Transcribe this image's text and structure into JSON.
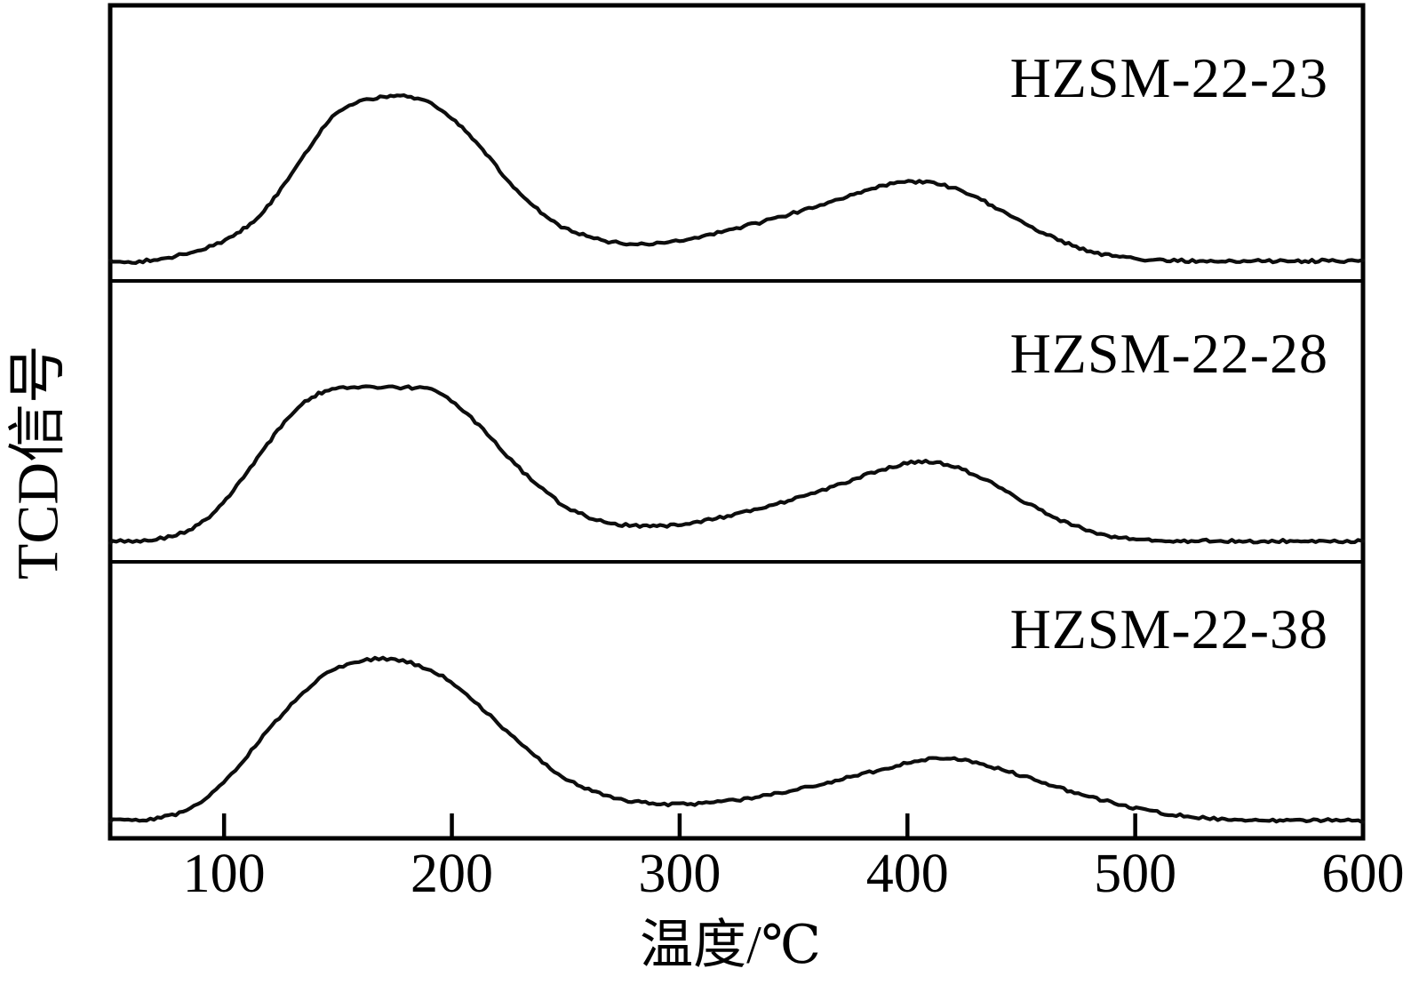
{
  "chart_data": {
    "type": "line",
    "title": "",
    "xlabel": "温度/℃",
    "ylabel": "TCD信号",
    "x_ticks": [
      100,
      200,
      300,
      400,
      500,
      600
    ],
    "xlim": [
      50,
      600
    ],
    "ylim_note": "y is unlabeled arbitrary TCD signal; values below are normalized 0-1 per panel (1 = top of main low-temperature peak)",
    "grid": false,
    "legend_position": "none (each of three stacked panels is labeled inside at top right)",
    "layout": "three vertically stacked panels sharing one temperature axis; black curves on white, serif labels",
    "line_color": "#000000",
    "series": [
      {
        "name": "HZSM-22-23",
        "panel": 0,
        "peak_summary": "broad desorption peak plateau ~150-190°C and weaker broad peak ~400°C",
        "points": [
          [
            50,
            0.015
          ],
          [
            58,
            0.01
          ],
          [
            66,
            0.02
          ],
          [
            74,
            0.035
          ],
          [
            82,
            0.06
          ],
          [
            90,
            0.09
          ],
          [
            97,
            0.12
          ],
          [
            104,
            0.17
          ],
          [
            110,
            0.23
          ],
          [
            116,
            0.3
          ],
          [
            122,
            0.4
          ],
          [
            128,
            0.52
          ],
          [
            134,
            0.64
          ],
          [
            140,
            0.76
          ],
          [
            146,
            0.87
          ],
          [
            152,
            0.945
          ],
          [
            158,
            0.985
          ],
          [
            164,
            1.005
          ],
          [
            170,
            1.015
          ],
          [
            176,
            1.03
          ],
          [
            182,
            1.015
          ],
          [
            188,
            0.995
          ],
          [
            194,
            0.95
          ],
          [
            200,
            0.89
          ],
          [
            206,
            0.81
          ],
          [
            212,
            0.72
          ],
          [
            218,
            0.62
          ],
          [
            224,
            0.52
          ],
          [
            230,
            0.43
          ],
          [
            236,
            0.35
          ],
          [
            242,
            0.285
          ],
          [
            248,
            0.23
          ],
          [
            256,
            0.185
          ],
          [
            264,
            0.15
          ],
          [
            272,
            0.13
          ],
          [
            280,
            0.12
          ],
          [
            290,
            0.125
          ],
          [
            300,
            0.145
          ],
          [
            310,
            0.17
          ],
          [
            320,
            0.2
          ],
          [
            330,
            0.235
          ],
          [
            340,
            0.27
          ],
          [
            350,
            0.31
          ],
          [
            360,
            0.35
          ],
          [
            370,
            0.39
          ],
          [
            378,
            0.43
          ],
          [
            386,
            0.465
          ],
          [
            394,
            0.49
          ],
          [
            402,
            0.5
          ],
          [
            410,
            0.495
          ],
          [
            418,
            0.47
          ],
          [
            426,
            0.43
          ],
          [
            434,
            0.38
          ],
          [
            442,
            0.32
          ],
          [
            450,
            0.26
          ],
          [
            458,
            0.2
          ],
          [
            466,
            0.15
          ],
          [
            474,
            0.105
          ],
          [
            482,
            0.07
          ],
          [
            490,
            0.05
          ],
          [
            498,
            0.035
          ],
          [
            508,
            0.025
          ],
          [
            522,
            0.02
          ],
          [
            538,
            0.015
          ],
          [
            554,
            0.02
          ],
          [
            570,
            0.015
          ],
          [
            585,
            0.02
          ],
          [
            600,
            0.015
          ]
        ]
      },
      {
        "name": "HZSM-22-28",
        "panel": 1,
        "peak_summary": "broad desorption peak plateau ~135-190°C and weaker peak ~405°C",
        "points": [
          [
            50,
            0.015
          ],
          [
            58,
            0.02
          ],
          [
            65,
            0.02
          ],
          [
            72,
            0.035
          ],
          [
            79,
            0.06
          ],
          [
            86,
            0.1
          ],
          [
            92,
            0.16
          ],
          [
            98,
            0.24
          ],
          [
            104,
            0.34
          ],
          [
            110,
            0.46
          ],
          [
            116,
            0.58
          ],
          [
            122,
            0.7
          ],
          [
            128,
            0.81
          ],
          [
            134,
            0.9
          ],
          [
            140,
            0.955
          ],
          [
            146,
            0.99
          ],
          [
            154,
            1.005
          ],
          [
            164,
            1.01
          ],
          [
            174,
            1.005
          ],
          [
            184,
            1.005
          ],
          [
            191,
            0.99
          ],
          [
            198,
            0.94
          ],
          [
            205,
            0.86
          ],
          [
            212,
            0.76
          ],
          [
            219,
            0.65
          ],
          [
            226,
            0.54
          ],
          [
            233,
            0.44
          ],
          [
            240,
            0.35
          ],
          [
            247,
            0.27
          ],
          [
            254,
            0.21
          ],
          [
            262,
            0.165
          ],
          [
            270,
            0.135
          ],
          [
            278,
            0.12
          ],
          [
            287,
            0.115
          ],
          [
            296,
            0.12
          ],
          [
            306,
            0.14
          ],
          [
            316,
            0.165
          ],
          [
            326,
            0.195
          ],
          [
            336,
            0.23
          ],
          [
            346,
            0.27
          ],
          [
            356,
            0.315
          ],
          [
            366,
            0.365
          ],
          [
            376,
            0.415
          ],
          [
            384,
            0.455
          ],
          [
            392,
            0.49
          ],
          [
            400,
            0.52
          ],
          [
            408,
            0.53
          ],
          [
            416,
            0.515
          ],
          [
            424,
            0.48
          ],
          [
            432,
            0.43
          ],
          [
            440,
            0.37
          ],
          [
            448,
            0.3
          ],
          [
            456,
            0.235
          ],
          [
            464,
            0.175
          ],
          [
            472,
            0.125
          ],
          [
            480,
            0.085
          ],
          [
            488,
            0.055
          ],
          [
            496,
            0.04
          ],
          [
            506,
            0.028
          ],
          [
            520,
            0.018
          ],
          [
            536,
            0.022
          ],
          [
            552,
            0.015
          ],
          [
            568,
            0.02
          ],
          [
            584,
            0.016
          ],
          [
            600,
            0.02
          ]
        ]
      },
      {
        "name": "HZSM-22-38",
        "panel": 2,
        "peak_summary": "rounded desorption peak centered ~160°C and weaker broad peak ~410°C",
        "points": [
          [
            50,
            0.015
          ],
          [
            58,
            0.02
          ],
          [
            66,
            0.02
          ],
          [
            74,
            0.04
          ],
          [
            82,
            0.07
          ],
          [
            90,
            0.13
          ],
          [
            98,
            0.22
          ],
          [
            105,
            0.32
          ],
          [
            112,
            0.44
          ],
          [
            119,
            0.56
          ],
          [
            126,
            0.67
          ],
          [
            133,
            0.77
          ],
          [
            140,
            0.86
          ],
          [
            147,
            0.925
          ],
          [
            154,
            0.965
          ],
          [
            161,
            0.99
          ],
          [
            168,
            1.0
          ],
          [
            175,
            0.995
          ],
          [
            182,
            0.975
          ],
          [
            189,
            0.94
          ],
          [
            196,
            0.89
          ],
          [
            203,
            0.82
          ],
          [
            210,
            0.74
          ],
          [
            217,
            0.65
          ],
          [
            224,
            0.56
          ],
          [
            231,
            0.47
          ],
          [
            238,
            0.39
          ],
          [
            245,
            0.315
          ],
          [
            252,
            0.255
          ],
          [
            260,
            0.205
          ],
          [
            268,
            0.165
          ],
          [
            276,
            0.14
          ],
          [
            285,
            0.125
          ],
          [
            295,
            0.115
          ],
          [
            305,
            0.115
          ],
          [
            315,
            0.125
          ],
          [
            325,
            0.14
          ],
          [
            335,
            0.16
          ],
          [
            345,
            0.185
          ],
          [
            355,
            0.215
          ],
          [
            365,
            0.245
          ],
          [
            375,
            0.28
          ],
          [
            385,
            0.315
          ],
          [
            395,
            0.35
          ],
          [
            403,
            0.375
          ],
          [
            411,
            0.39
          ],
          [
            419,
            0.39
          ],
          [
            427,
            0.375
          ],
          [
            435,
            0.35
          ],
          [
            443,
            0.32
          ],
          [
            451,
            0.285
          ],
          [
            459,
            0.25
          ],
          [
            467,
            0.215
          ],
          [
            475,
            0.18
          ],
          [
            483,
            0.15
          ],
          [
            491,
            0.12
          ],
          [
            499,
            0.095
          ],
          [
            508,
            0.07
          ],
          [
            518,
            0.05
          ],
          [
            528,
            0.035
          ],
          [
            538,
            0.025
          ],
          [
            550,
            0.02
          ],
          [
            565,
            0.015
          ],
          [
            580,
            0.02
          ],
          [
            600,
            0.015
          ]
        ]
      }
    ]
  }
}
